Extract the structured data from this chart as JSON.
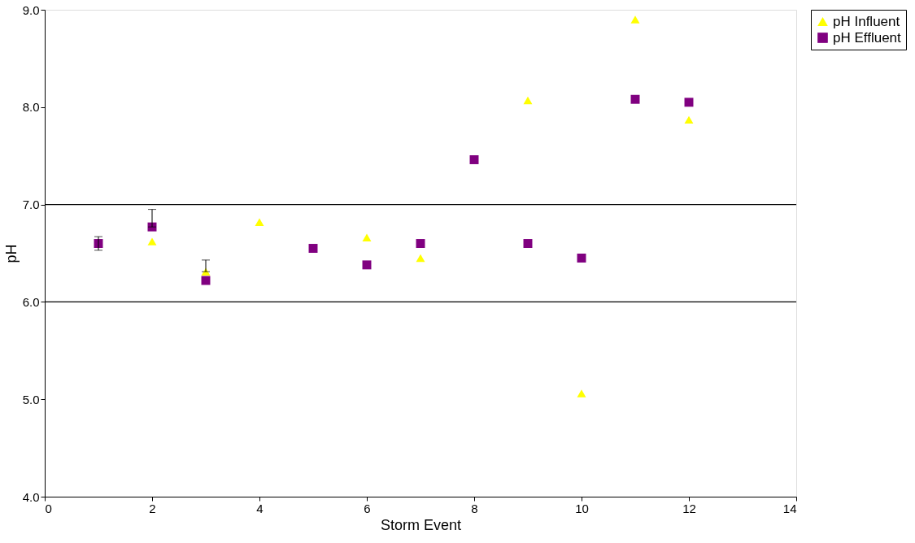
{
  "chart_data": {
    "type": "scatter",
    "xlabel": "Storm Event",
    "ylabel": "pH",
    "xlim": [
      0,
      14
    ],
    "xticks": [
      0,
      2,
      4,
      6,
      8,
      10,
      12,
      14
    ],
    "ylim": [
      4,
      9
    ],
    "yticks": [
      {
        "value": 4,
        "label": "4.0"
      },
      {
        "value": 5,
        "label": "5.0"
      },
      {
        "value": 6,
        "label": "6.0"
      },
      {
        "value": 7,
        "label": "7.0"
      },
      {
        "value": 8,
        "label": "8.0"
      },
      {
        "value": 9,
        "label": "9.0"
      }
    ],
    "x": [
      1,
      2,
      3,
      4,
      5,
      6,
      7,
      8,
      9,
      10,
      11,
      12
    ],
    "series": [
      {
        "name": "pH Influent",
        "color": "#ffff00",
        "marker": "triangle",
        "values": [
          null,
          6.62,
          6.31,
          6.82,
          null,
          6.66,
          6.45,
          null,
          8.07,
          5.06,
          8.9,
          7.87
        ],
        "errors": [
          null,
          null,
          [
            6.31,
            6.43
          ],
          null,
          null,
          null,
          null,
          null,
          null,
          null,
          null,
          null
        ]
      },
      {
        "name": "pH Effluent",
        "color": "#800080",
        "marker": "square",
        "values": [
          6.6,
          6.77,
          6.22,
          null,
          6.55,
          6.38,
          6.6,
          7.46,
          6.6,
          6.45,
          8.08,
          8.05
        ],
        "errors": [
          [
            6.53,
            6.67
          ],
          [
            6.77,
            6.95
          ],
          null,
          null,
          null,
          null,
          null,
          null,
          null,
          null,
          null,
          null
        ]
      }
    ],
    "ref_lines": [
      {
        "axis": "y",
        "value": 6,
        "color": "#000000"
      },
      {
        "axis": "y",
        "value": 7,
        "color": "#000000"
      }
    ],
    "grid": false,
    "legend": "right"
  }
}
